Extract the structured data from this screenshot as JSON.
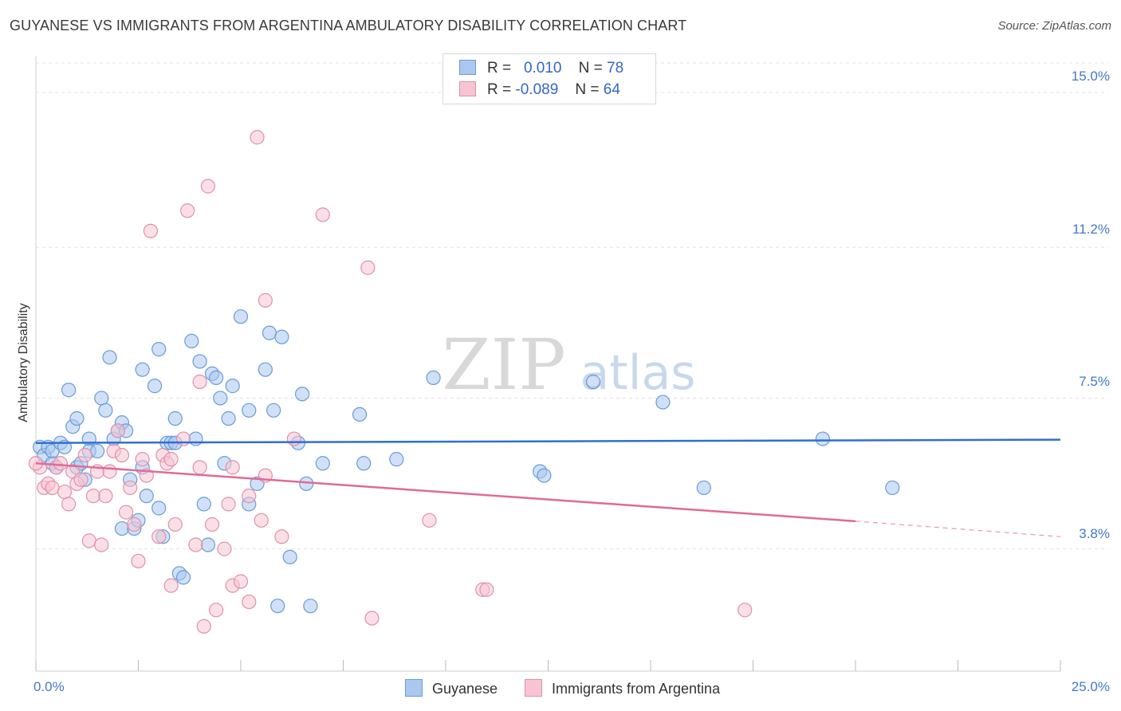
{
  "title": "GUYANESE VS IMMIGRANTS FROM ARGENTINA AMBULATORY DISABILITY CORRELATION CHART",
  "source": "Source: ZipAtlas.com",
  "watermark": {
    "bold": "ZIP",
    "light": "atlas"
  },
  "legend": {
    "rows": [
      {
        "r_label": "R =",
        "r_value": "0.010",
        "n_label": "N =",
        "n_value": "78"
      },
      {
        "r_label": "R =",
        "r_value": "-0.089",
        "n_label": "N =",
        "n_value": "64"
      }
    ]
  },
  "bottom_legend": {
    "series1": "Guyanese",
    "series2": "Immigrants from Argentina"
  },
  "chart_data": {
    "type": "scatter",
    "title": "GUYANESE VS IMMIGRANTS FROM ARGENTINA AMBULATORY DISABILITY CORRELATION CHART",
    "xlabel": "",
    "ylabel": "Ambulatory Disability",
    "xlim": [
      0,
      25
    ],
    "ylim": [
      0.8,
      15.9
    ],
    "x_tick_labels": [
      "0.0%",
      "25.0%"
    ],
    "y_tick_labels": [
      "15.0%",
      "11.2%",
      "7.5%",
      "3.8%"
    ],
    "y_ticks": [
      15.0,
      11.2,
      7.5,
      3.8
    ],
    "grid": "horizontal dashed",
    "colors": {
      "guyanese": "#6a9ad8",
      "guyanese_fill": "#aac8f0",
      "guyanese_line": "#2f6fd0",
      "argentina": "#e090aa",
      "argentina_fill": "#f8c4d4",
      "argentina_line": "#e06a96"
    },
    "series": [
      {
        "name": "Guyanese",
        "trend": {
          "x": [
            0,
            25
          ],
          "y": [
            6.4,
            6.48
          ]
        },
        "points": [
          [
            0.1,
            6.3
          ],
          [
            0.2,
            6.1
          ],
          [
            0.3,
            6.3
          ],
          [
            0.4,
            5.9
          ],
          [
            0.4,
            6.2
          ],
          [
            0.5,
            5.8
          ],
          [
            0.6,
            6.4
          ],
          [
            0.7,
            6.3
          ],
          [
            0.8,
            7.7
          ],
          [
            0.9,
            6.8
          ],
          [
            1.0,
            7.0
          ],
          [
            1.0,
            5.8
          ],
          [
            1.1,
            5.9
          ],
          [
            1.2,
            5.5
          ],
          [
            1.3,
            6.5
          ],
          [
            1.3,
            6.2
          ],
          [
            1.5,
            6.2
          ],
          [
            1.6,
            7.5
          ],
          [
            1.7,
            7.2
          ],
          [
            1.8,
            8.5
          ],
          [
            1.9,
            6.5
          ],
          [
            2.0,
            6.7
          ],
          [
            2.1,
            6.9
          ],
          [
            2.1,
            4.3
          ],
          [
            2.2,
            6.7
          ],
          [
            2.3,
            5.5
          ],
          [
            2.4,
            4.3
          ],
          [
            2.5,
            4.5
          ],
          [
            2.6,
            5.8
          ],
          [
            2.6,
            8.2
          ],
          [
            2.7,
            5.1
          ],
          [
            2.9,
            7.8
          ],
          [
            3.0,
            8.7
          ],
          [
            3.0,
            4.8
          ],
          [
            3.1,
            4.1
          ],
          [
            3.2,
            6.4
          ],
          [
            3.3,
            6.4
          ],
          [
            3.4,
            6.4
          ],
          [
            3.4,
            7.0
          ],
          [
            3.5,
            3.2
          ],
          [
            3.6,
            3.1
          ],
          [
            3.8,
            8.9
          ],
          [
            3.9,
            6.5
          ],
          [
            4.0,
            8.4
          ],
          [
            4.1,
            4.9
          ],
          [
            4.2,
            3.9
          ],
          [
            4.3,
            8.1
          ],
          [
            4.4,
            8.0
          ],
          [
            4.5,
            7.5
          ],
          [
            4.6,
            5.9
          ],
          [
            4.7,
            7.0
          ],
          [
            4.8,
            7.8
          ],
          [
            5.0,
            9.5
          ],
          [
            5.2,
            7.2
          ],
          [
            5.2,
            4.9
          ],
          [
            5.4,
            5.4
          ],
          [
            5.6,
            8.2
          ],
          [
            5.7,
            9.1
          ],
          [
            5.8,
            7.2
          ],
          [
            6.0,
            9.0
          ],
          [
            6.2,
            3.6
          ],
          [
            6.4,
            6.4
          ],
          [
            6.5,
            7.6
          ],
          [
            6.6,
            5.4
          ],
          [
            6.7,
            2.4
          ],
          [
            7.0,
            5.9
          ],
          [
            7.9,
            7.1
          ],
          [
            8.0,
            5.9
          ],
          [
            9.7,
            8.0
          ],
          [
            12.3,
            5.7
          ],
          [
            12.4,
            5.6
          ],
          [
            13.6,
            7.9
          ],
          [
            15.3,
            7.4
          ],
          [
            16.3,
            5.3
          ],
          [
            19.2,
            6.5
          ],
          [
            20.9,
            5.3
          ],
          [
            8.8,
            6.0
          ],
          [
            5.9,
            2.4
          ]
        ]
      },
      {
        "name": "Immigrants from Argentina",
        "trend": {
          "x": [
            0,
            20
          ],
          "y": [
            5.9,
            4.48
          ]
        },
        "trend_dashed": {
          "x": [
            20,
            25
          ],
          "y": [
            4.48,
            4.1
          ]
        },
        "points": [
          [
            0.1,
            5.8
          ],
          [
            0.2,
            5.3
          ],
          [
            0.3,
            5.4
          ],
          [
            0.4,
            5.3
          ],
          [
            0.5,
            5.8
          ],
          [
            0.6,
            5.9
          ],
          [
            0.7,
            5.2
          ],
          [
            0.8,
            4.9
          ],
          [
            0.9,
            5.7
          ],
          [
            1.0,
            5.4
          ],
          [
            1.1,
            5.5
          ],
          [
            1.2,
            6.1
          ],
          [
            1.3,
            4.0
          ],
          [
            1.4,
            5.1
          ],
          [
            1.5,
            5.7
          ],
          [
            1.6,
            3.9
          ],
          [
            1.7,
            5.1
          ],
          [
            1.8,
            5.7
          ],
          [
            1.9,
            6.2
          ],
          [
            2.0,
            6.7
          ],
          [
            2.1,
            6.1
          ],
          [
            2.2,
            4.7
          ],
          [
            2.3,
            5.3
          ],
          [
            2.4,
            4.4
          ],
          [
            2.5,
            3.5
          ],
          [
            2.6,
            6.0
          ],
          [
            2.7,
            5.6
          ],
          [
            2.8,
            11.6
          ],
          [
            3.0,
            4.1
          ],
          [
            3.1,
            6.1
          ],
          [
            3.2,
            5.9
          ],
          [
            3.3,
            6.0
          ],
          [
            3.3,
            2.9
          ],
          [
            3.4,
            4.4
          ],
          [
            3.6,
            6.5
          ],
          [
            3.7,
            12.1
          ],
          [
            3.9,
            3.9
          ],
          [
            4.0,
            7.9
          ],
          [
            4.0,
            5.8
          ],
          [
            4.1,
            1.9
          ],
          [
            4.2,
            12.7
          ],
          [
            4.3,
            4.4
          ],
          [
            4.4,
            2.3
          ],
          [
            4.6,
            3.8
          ],
          [
            4.7,
            4.9
          ],
          [
            4.8,
            5.8
          ],
          [
            4.8,
            2.9
          ],
          [
            5.0,
            3.0
          ],
          [
            5.2,
            2.5
          ],
          [
            5.2,
            5.1
          ],
          [
            5.4,
            13.9
          ],
          [
            5.5,
            4.5
          ],
          [
            5.6,
            9.9
          ],
          [
            5.6,
            5.6
          ],
          [
            6.0,
            4.1
          ],
          [
            6.3,
            6.5
          ],
          [
            7.0,
            12.0
          ],
          [
            8.1,
            10.7
          ],
          [
            8.2,
            2.1
          ],
          [
            9.6,
            4.5
          ],
          [
            10.9,
            2.8
          ],
          [
            11.0,
            2.8
          ],
          [
            17.3,
            2.3
          ],
          [
            0.0,
            5.9
          ]
        ]
      }
    ]
  }
}
